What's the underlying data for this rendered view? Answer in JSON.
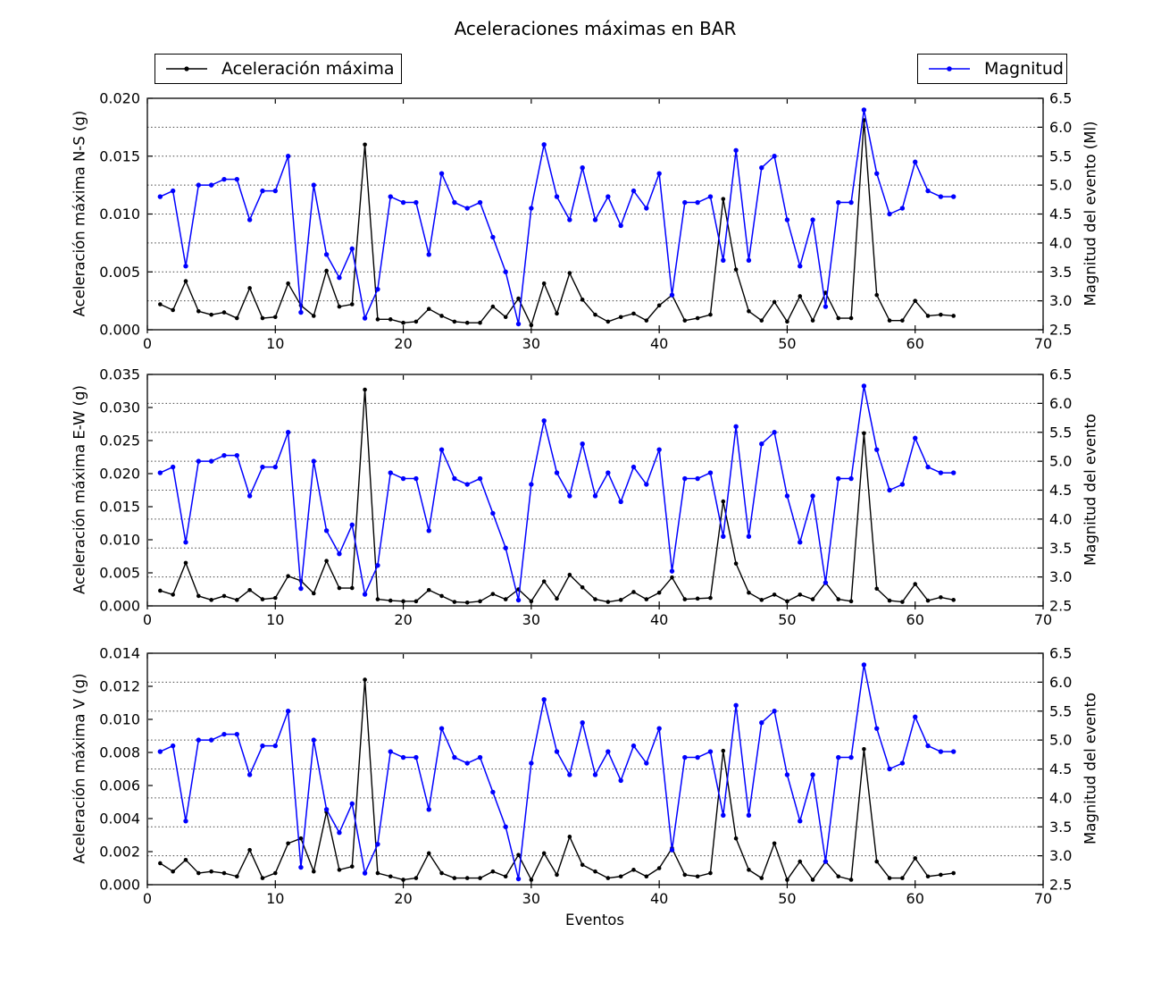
{
  "chart_data": {
    "type": "line",
    "title": "Aceleraciones máximas en BAR",
    "xlabel": "Eventos",
    "xlim": [
      0,
      70
    ],
    "xtick_labels": [
      "0",
      "10",
      "20",
      "30",
      "40",
      "50",
      "60",
      "70"
    ],
    "legend": {
      "accel": "Aceleración máxima",
      "magnitude": "Magnitud"
    },
    "colors": {
      "accel": "#000000",
      "magnitude": "#0000ff",
      "grid": "#444444",
      "frame": "#000000"
    },
    "x": [
      1,
      2,
      3,
      4,
      5,
      6,
      7,
      8,
      9,
      10,
      11,
      12,
      13,
      14,
      15,
      16,
      17,
      18,
      19,
      20,
      21,
      22,
      23,
      24,
      25,
      26,
      27,
      28,
      29,
      30,
      31,
      32,
      33,
      34,
      35,
      36,
      37,
      38,
      39,
      40,
      41,
      42,
      43,
      44,
      45,
      46,
      47,
      48,
      49,
      50,
      51,
      52,
      53,
      54,
      55,
      56,
      57,
      58,
      59,
      60,
      61,
      62,
      63
    ],
    "magnitude_series": {
      "name": "Magnitud",
      "axis": "right",
      "values": [
        4.8,
        4.9,
        3.6,
        5.0,
        5.0,
        5.1,
        5.1,
        4.4,
        4.9,
        4.9,
        5.5,
        2.8,
        5.0,
        3.8,
        3.4,
        3.9,
        2.7,
        3.2,
        4.8,
        4.7,
        4.7,
        3.8,
        5.2,
        4.7,
        4.6,
        4.7,
        4.1,
        3.5,
        2.6,
        4.6,
        5.7,
        4.8,
        4.4,
        5.3,
        4.4,
        4.8,
        4.3,
        4.9,
        4.6,
        5.2,
        3.1,
        4.7,
        4.7,
        4.8,
        3.7,
        5.6,
        3.7,
        5.3,
        5.5,
        4.4,
        3.6,
        4.4,
        2.9,
        4.7,
        4.7,
        6.3,
        5.2,
        4.5,
        4.6,
        5.4,
        4.9,
        4.8,
        4.8
      ]
    },
    "right_axis": {
      "lim": [
        2.5,
        6.5
      ],
      "tick_labels": [
        "2.5",
        "3.0",
        "3.5",
        "4.0",
        "4.5",
        "5.0",
        "5.5",
        "6.0",
        "6.5"
      ],
      "grid_values": [
        3.0,
        3.5,
        4.0,
        4.5,
        5.0,
        5.5,
        6.0
      ]
    },
    "panels": [
      {
        "ylabel": "Aceleración máxima N-S (g)",
        "right_label": "Magnitud del evento (Ml)",
        "ylim": [
          0,
          0.02
        ],
        "ytick_labels": [
          "0.000",
          "0.005",
          "0.010",
          "0.015",
          "0.020"
        ],
        "accel_values": [
          0.0022,
          0.0017,
          0.0042,
          0.0016,
          0.0013,
          0.0015,
          0.001,
          0.0036,
          0.001,
          0.0011,
          0.004,
          0.0021,
          0.0012,
          0.0051,
          0.002,
          0.0022,
          0.016,
          0.0009,
          0.0009,
          0.0006,
          0.0007,
          0.0018,
          0.0012,
          0.0007,
          0.0006,
          0.0006,
          0.002,
          0.0011,
          0.0027,
          0.0004,
          0.004,
          0.0014,
          0.0049,
          0.0026,
          0.0013,
          0.0007,
          0.0011,
          0.0014,
          0.0008,
          0.0021,
          0.003,
          0.0008,
          0.001,
          0.0013,
          0.0113,
          0.0052,
          0.0016,
          0.0008,
          0.0024,
          0.0007,
          0.0029,
          0.0008,
          0.0032,
          0.001,
          0.001,
          0.0181,
          0.003,
          0.0008,
          0.0008,
          0.0025,
          0.0012,
          0.0013,
          0.0012
        ]
      },
      {
        "ylabel": "Aceleración máxima E-W (g)",
        "right_label": "Magnitud del evento",
        "ylim": [
          0,
          0.035
        ],
        "ytick_labels": [
          "0.000",
          "0.005",
          "0.010",
          "0.015",
          "0.020",
          "0.025",
          "0.030",
          "0.035"
        ],
        "accel_values": [
          0.0023,
          0.0017,
          0.0065,
          0.0015,
          0.0009,
          0.0015,
          0.0009,
          0.0024,
          0.001,
          0.0012,
          0.0045,
          0.0038,
          0.0019,
          0.0068,
          0.0027,
          0.0027,
          0.0327,
          0.001,
          0.0008,
          0.0007,
          0.0007,
          0.0024,
          0.0015,
          0.0006,
          0.0005,
          0.0007,
          0.0018,
          0.001,
          0.0025,
          0.0007,
          0.0037,
          0.0011,
          0.0047,
          0.0028,
          0.001,
          0.0006,
          0.0009,
          0.0021,
          0.001,
          0.002,
          0.0043,
          0.001,
          0.0011,
          0.0012,
          0.0158,
          0.0064,
          0.002,
          0.0009,
          0.0017,
          0.0007,
          0.0017,
          0.001,
          0.0035,
          0.001,
          0.0007,
          0.0261,
          0.0026,
          0.0008,
          0.0006,
          0.0033,
          0.0008,
          0.0013,
          0.0009
        ]
      },
      {
        "ylabel": "Aceleración máxima V (g)",
        "right_label": "Magnitud del evento",
        "ylim": [
          0,
          0.014
        ],
        "ytick_labels": [
          "0.000",
          "0.002",
          "0.004",
          "0.006",
          "0.008",
          "0.010",
          "0.012",
          "0.014"
        ],
        "accel_values": [
          0.0013,
          0.0008,
          0.0015,
          0.0007,
          0.0008,
          0.0007,
          0.0005,
          0.0021,
          0.0004,
          0.0007,
          0.0025,
          0.0028,
          0.0008,
          0.0044,
          0.0009,
          0.0011,
          0.0124,
          0.0007,
          0.0005,
          0.0003,
          0.0004,
          0.0019,
          0.0007,
          0.0004,
          0.0004,
          0.0004,
          0.0008,
          0.0005,
          0.0018,
          0.0003,
          0.0019,
          0.0006,
          0.0029,
          0.0012,
          0.0008,
          0.0004,
          0.0005,
          0.0009,
          0.0005,
          0.001,
          0.0022,
          0.0006,
          0.0005,
          0.0007,
          0.0081,
          0.0028,
          0.0009,
          0.0004,
          0.0025,
          0.0003,
          0.0014,
          0.0003,
          0.0014,
          0.0005,
          0.0003,
          0.0082,
          0.0014,
          0.0004,
          0.0004,
          0.0016,
          0.0005,
          0.0006,
          0.0007
        ]
      }
    ]
  }
}
